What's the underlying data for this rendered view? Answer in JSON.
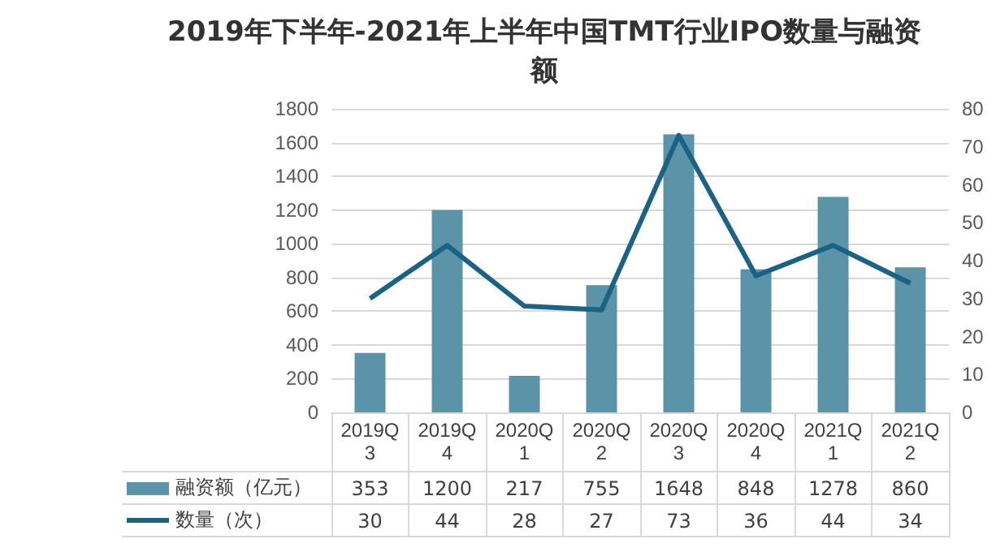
{
  "chart_data": {
    "type": "bar",
    "title": "2019年下半年-2021年上半年中国TMT行业IPO数量与融资额",
    "categories": [
      "2019Q3",
      "2019Q4",
      "2020Q1",
      "2020Q2",
      "2020Q3",
      "2020Q4",
      "2021Q1",
      "2021Q2"
    ],
    "series": [
      {
        "name": "融资额（亿元）",
        "color": "#5b93a9",
        "values": [
          353,
          1200,
          217,
          755,
          1648,
          848,
          1278,
          860
        ]
      },
      {
        "name": "数量（次）",
        "type": "line",
        "axis": "y2",
        "color": "#1b6384",
        "values": [
          30,
          44,
          28,
          27,
          73,
          36,
          44,
          34
        ]
      }
    ],
    "ylim": [
      0,
      1800
    ],
    "yticks": [
      0,
      200,
      400,
      600,
      800,
      1000,
      1200,
      1400,
      1600,
      1800
    ],
    "y2lim": [
      0,
      80
    ],
    "y2ticks": [
      0,
      10,
      20,
      30,
      40,
      50,
      60,
      70,
      80
    ],
    "grid": "y",
    "legend": "bottom",
    "marker": "none",
    "data_labels": true
  }
}
